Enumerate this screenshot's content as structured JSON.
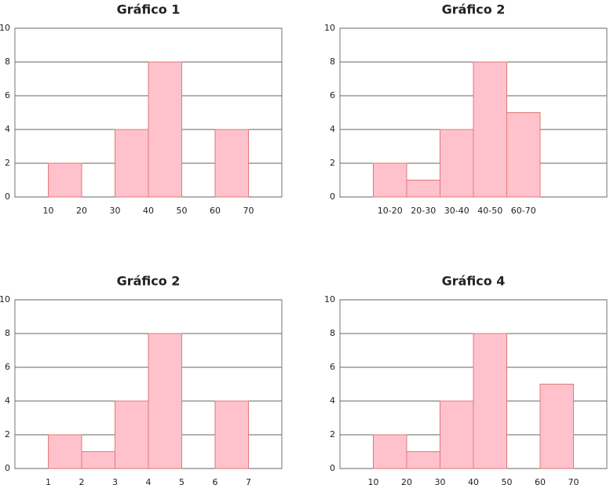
{
  "chart_data": [
    {
      "type": "histogram",
      "title": "Gráfico 1",
      "bins": [
        10,
        20,
        30,
        40,
        50,
        60,
        70
      ],
      "counts": [
        2,
        0,
        4,
        8,
        0,
        4
      ],
      "xlim": [
        0,
        80
      ],
      "xticks": [
        10,
        20,
        30,
        40,
        50,
        60,
        70
      ],
      "ylim": [
        0,
        10
      ],
      "yticks": [
        0,
        2,
        4,
        6,
        8,
        10
      ],
      "grid": true,
      "color": "#ffc2cc"
    },
    {
      "type": "bar",
      "title": "Gráfico 2",
      "categories": [
        null,
        "10-20",
        "20-30",
        "30-40",
        "40-50",
        "60-70",
        null,
        null
      ],
      "values": [
        null,
        2,
        1,
        4,
        8,
        5,
        null,
        null
      ],
      "ylim": [
        0,
        10
      ],
      "yticks": [
        0,
        2,
        4,
        6,
        8,
        10
      ],
      "grid": true,
      "color": "#ffc2cc"
    },
    {
      "type": "histogram",
      "title": "Gráfico 2",
      "bins": [
        1,
        2,
        3,
        4,
        5,
        6,
        7
      ],
      "counts": [
        2,
        1,
        4,
        8,
        0,
        4
      ],
      "xlim": [
        0,
        8
      ],
      "xticks": [
        1,
        2,
        3,
        4,
        5,
        6,
        7
      ],
      "ylim": [
        0,
        10
      ],
      "yticks": [
        0,
        2,
        4,
        6,
        8,
        10
      ],
      "grid": true,
      "color": "#ffc2cc"
    },
    {
      "type": "histogram",
      "title": "Gráfico 4",
      "bins": [
        10,
        20,
        30,
        40,
        50,
        60,
        70
      ],
      "counts": [
        2,
        1,
        4,
        8,
        0,
        5
      ],
      "xlim": [
        0,
        80
      ],
      "xticks": [
        10,
        20,
        30,
        40,
        50,
        60,
        70
      ],
      "ylim": [
        0,
        10
      ],
      "yticks": [
        0,
        2,
        4,
        6,
        8,
        10
      ],
      "grid": true,
      "color": "#ffc2cc"
    }
  ]
}
